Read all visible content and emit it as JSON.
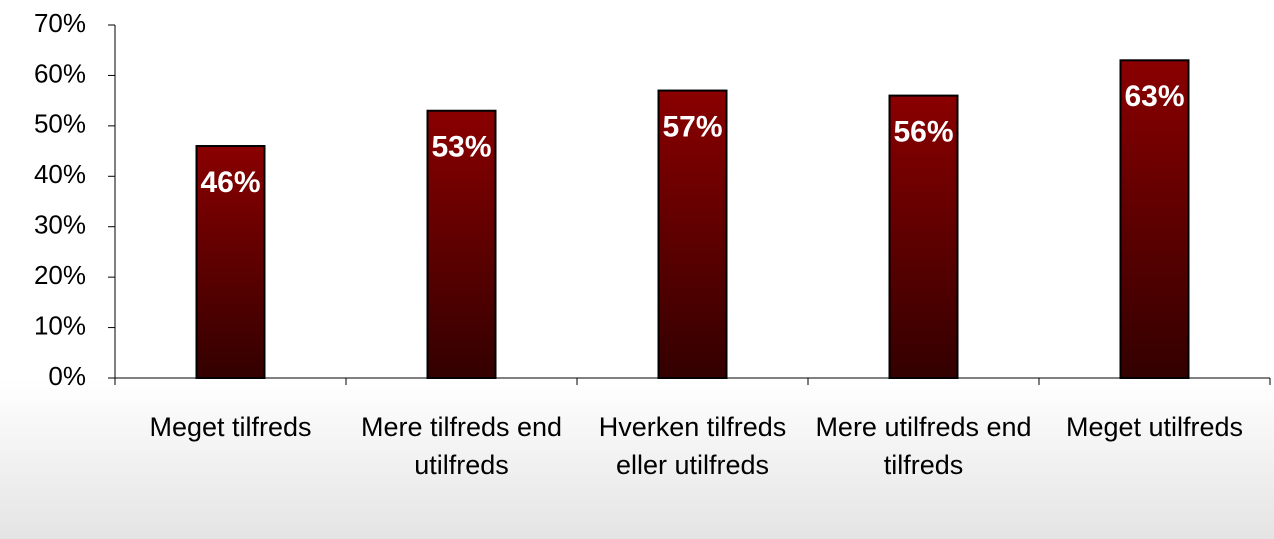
{
  "chart_data": {
    "type": "bar",
    "categories": [
      "Meget tilfreds",
      "Mere tilfreds end utilfreds",
      "Hverken tilfreds eller utilfreds",
      "Mere utilfreds end tilfreds",
      "Meget utilfreds"
    ],
    "values": [
      46,
      53,
      57,
      56,
      63
    ],
    "value_labels": [
      "46%",
      "53%",
      "57%",
      "56%",
      "63%"
    ],
    "color": "#7a0000",
    "ylim": [
      0,
      70
    ],
    "yticks": [
      {
        "value": 0,
        "label": "0%"
      },
      {
        "value": 10,
        "label": "10%"
      },
      {
        "value": 20,
        "label": "20%"
      },
      {
        "value": 30,
        "label": "30%"
      },
      {
        "value": 40,
        "label": "40%"
      },
      {
        "value": 50,
        "label": "50%"
      },
      {
        "value": 60,
        "label": "60%"
      },
      {
        "value": 70,
        "label": "70%"
      }
    ],
    "grid": false
  }
}
